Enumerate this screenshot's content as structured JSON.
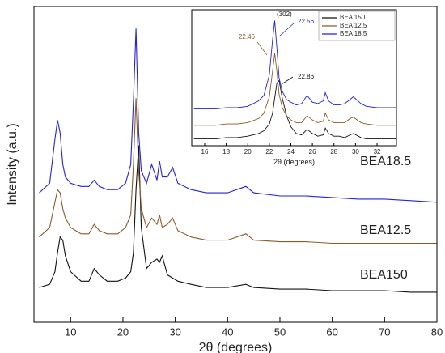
{
  "chart_data": [
    {
      "type": "line",
      "x_label": "2θ (degrees)",
      "y_label": "Intensity (a.u.)",
      "x": [
        4,
        6,
        7,
        7.5,
        8,
        8.5,
        9,
        10,
        12,
        13.5,
        14.5,
        15.5,
        17,
        19,
        20.5,
        21.5,
        22,
        22.5,
        23,
        23.5,
        24.5,
        25.5,
        26.5,
        27,
        27.5,
        28.5,
        29.5,
        30.5,
        33,
        36,
        40,
        43.5,
        45,
        50,
        55,
        60,
        65,
        70,
        75,
        80
      ],
      "series": [
        {
          "name": "BEA150",
          "color": "#111111",
          "values": [
            11,
            12,
            16,
            22,
            27,
            26,
            21,
            16,
            13,
            13,
            17,
            15,
            13,
            13,
            14,
            16,
            22,
            42,
            56,
            30,
            17,
            19,
            20,
            19,
            21,
            15,
            14,
            13,
            12,
            11,
            11,
            12,
            11,
            10.5,
            10.5,
            10,
            10,
            10,
            9.5,
            9.5
          ]
        },
        {
          "name": "BEA12.5",
          "color": "#8a5a2b",
          "values": [
            27,
            30,
            38,
            42,
            41,
            36,
            33,
            30,
            28,
            28,
            31,
            29,
            28,
            28,
            30,
            34,
            50,
            71,
            48,
            36,
            30,
            33,
            31,
            34,
            30,
            31,
            33,
            29,
            27,
            26,
            26,
            28,
            26,
            25.5,
            25.5,
            25,
            25,
            25,
            25,
            25
          ]
        },
        {
          "name": "BEA18.5",
          "color": "#2323d8",
          "values": [
            41,
            44,
            58,
            64,
            60,
            50,
            46,
            44,
            43,
            43,
            45,
            43,
            42,
            42,
            44,
            50,
            70,
            93,
            60,
            48,
            44,
            50,
            45,
            51,
            46,
            46,
            49,
            44,
            42,
            41,
            41,
            43,
            41,
            40,
            40,
            39.5,
            39,
            39,
            38.5,
            38
          ]
        }
      ],
      "xlim": [
        3,
        80
      ],
      "xticks": [
        10,
        20,
        30,
        40,
        50,
        60,
        70,
        80
      ],
      "ylim": [
        0,
        100
      ]
    },
    {
      "type": "line",
      "x_label": "2θ (degrees)",
      "x": [
        15,
        16,
        17,
        18,
        19,
        20,
        21,
        21.5,
        22,
        22.3,
        22.5,
        22.7,
        22.9,
        23.2,
        23.6,
        24,
        24.5,
        25,
        25.5,
        26,
        26.5,
        27,
        27.2,
        27.5,
        28,
        28.5,
        29,
        29.5,
        29.8,
        30.5,
        31,
        32,
        33,
        33.8
      ],
      "series": [
        {
          "name": "BEA 150",
          "color": "#111111",
          "values": [
            5,
            5,
            5,
            6,
            6,
            7,
            9,
            11,
            16,
            24,
            35,
            46,
            48,
            35,
            22,
            14,
            9,
            8,
            12,
            9,
            7,
            8,
            13,
            9,
            7,
            7,
            6,
            8,
            9,
            6,
            5,
            5,
            5,
            5
          ]
        },
        {
          "name": "BEA 12.5",
          "color": "#8a5a2b",
          "values": [
            15,
            15,
            15,
            16,
            16,
            17,
            20,
            24,
            36,
            55,
            68,
            55,
            38,
            28,
            22,
            19,
            17,
            17,
            22,
            19,
            17,
            18,
            24,
            19,
            17,
            17,
            17,
            20,
            21,
            17,
            16,
            15,
            15,
            15
          ]
        },
        {
          "name": "BEA 18.5",
          "color": "#2323d8",
          "values": [
            27,
            27,
            27,
            28,
            28,
            29,
            33,
            37,
            52,
            78,
            92,
            72,
            50,
            40,
            34,
            32,
            30,
            31,
            37,
            32,
            31,
            33,
            39,
            33,
            30,
            30,
            31,
            34,
            36,
            31,
            29,
            28,
            28,
            28
          ]
        }
      ],
      "annotations": [
        {
          "text": "(302)",
          "color": "#111111"
        },
        {
          "text": "22.56",
          "color": "#2323d8"
        },
        {
          "text": "22.46",
          "color": "#8a5a2b"
        },
        {
          "text": "22.86",
          "color": "#111111"
        }
      ],
      "xlim": [
        14.8,
        33.8
      ],
      "xticks": [
        16,
        18,
        20,
        22,
        24,
        26,
        28,
        30,
        32
      ],
      "ylim": [
        0,
        100
      ],
      "legend": "upper right"
    }
  ]
}
